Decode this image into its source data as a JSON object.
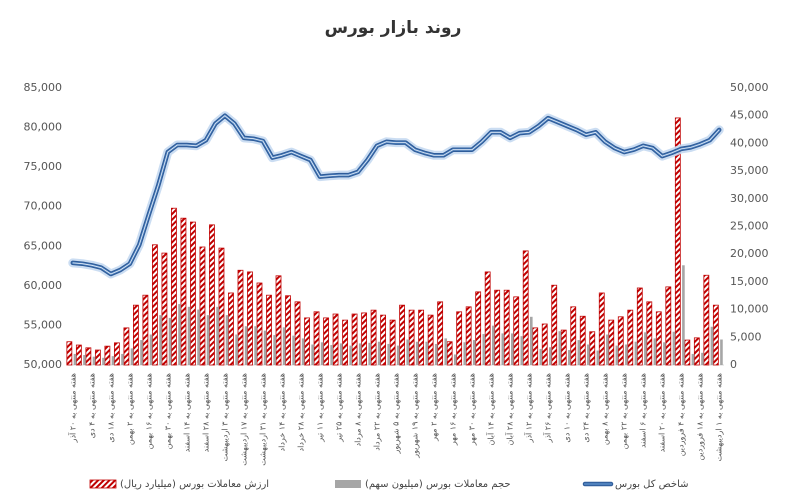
{
  "chart_data": {
    "type": "bar-line",
    "title": "روند بازار بورس",
    "categories": [
      "هفته منتهی به ۲۰ آذر",
      null,
      "هفته منتهی به ۴ دی",
      null,
      "هفته منتهی به ۱۸ دی",
      null,
      "هفته منتهی به ۲ بهمن",
      null,
      "هفته منتهی به ۱۶ بهمن",
      null,
      "هفته منتهی به ۳۰ بهمن",
      null,
      "هفته منتهی به ۱۴ اسفند",
      null,
      "هفته منتهی به ۲۸ اسفند",
      null,
      "هفته منتهی به ۳ اردیبهشت",
      null,
      "هفته منتهی به ۱۷ اردیبهشت",
      null,
      "هفته منتهی به ۳۱ اردیبهشت",
      null,
      "هفته منتهی به ۱۴ خرداد",
      null,
      "هفته منتهی به ۲۸ خرداد",
      null,
      "هفته منتهی به ۱۱ تیر",
      null,
      "هفته منتهی به ۲۵ تیر",
      null,
      "هفته منتهی به ۸ مرداد",
      null,
      "هفته منتهی به ۲۲ مرداد",
      null,
      "هفته منتهی به ۵ شهریور",
      null,
      "هفته منتهی به ۱۹ شهریور",
      null,
      "هفته منتهی به ۲ مهر",
      null,
      "هفته منتهی به ۱۶ مهر",
      null,
      "هفته منتهی به ۳۰ مهر",
      null,
      "هفته منتهی به ۱۴ آبان",
      null,
      "هفته منتهی به ۲۸ آبان",
      null,
      "هفته منتهی به ۱۲ آذر",
      null,
      "هفته منتهی به ۲۶ آذر",
      null,
      "هفته منتهی به ۱۰ دی",
      null,
      "هفته منتهی به ۲۴ دی",
      null,
      "هفته منتهی به ۸ بهمن",
      null,
      "هفته منتهی به ۲۲ بهمن",
      null,
      "هفته منتهی به ۶ اسفند",
      null,
      "هفته منتهی به ۲۰ اسفند",
      null,
      "هفته منتهی به ۴ فروردین",
      null,
      "هفته منتهی به ۱۸ فروردین",
      null,
      "هفته منتهی به ۱ اردیبهشت"
    ],
    "series": [
      {
        "name": "ارزش معاملات بورس (میلیارد ریال)",
        "type": "bar",
        "axis": "y2",
        "color": "#c00000",
        "pattern": "hatch",
        "values": [
          4200,
          3600,
          3100,
          2700,
          3400,
          4000,
          6700,
          10800,
          12600,
          21700,
          20200,
          28300,
          26500,
          25800,
          21300,
          25300,
          21100,
          13000,
          17100,
          16800,
          14800,
          12600,
          16100,
          12500,
          11400,
          8500,
          9600,
          8500,
          9200,
          8100,
          9200,
          9400,
          9900,
          9000,
          8100,
          10800,
          9900,
          9900,
          9000,
          11400,
          4200,
          9600,
          10500,
          13200,
          16800,
          13500,
          13500,
          12300,
          20600,
          6700,
          7400,
          14400,
          6300,
          10500,
          8800,
          6000,
          13000,
          8100,
          8700,
          9900,
          13900,
          11400,
          9600,
          14100,
          44600,
          4500,
          4900,
          16200,
          10800
        ]
      },
      {
        "name": "حجم معاملات بورس (میلیون سهم)",
        "type": "bar",
        "axis": "y2",
        "color": "#a6a6a6",
        "values": [
          2000,
          1800,
          1500,
          1300,
          1600,
          2000,
          3000,
          4500,
          5500,
          9000,
          8500,
          11000,
          10500,
          10000,
          9000,
          10500,
          9000,
          5500,
          7000,
          7000,
          6200,
          5400,
          6800,
          5300,
          4800,
          3700,
          4100,
          3600,
          3900,
          3500,
          3900,
          4000,
          4200,
          3800,
          3500,
          4600,
          4200,
          4200,
          3800,
          4800,
          1900,
          4100,
          4500,
          5600,
          7100,
          5700,
          5700,
          5200,
          8700,
          2900,
          3200,
          6100,
          2700,
          4500,
          3700,
          2600,
          5500,
          3500,
          3700,
          4200,
          5900,
          4800,
          4100,
          6000,
          18000,
          2000,
          2200,
          6900,
          4600
        ]
      },
      {
        "name": "شاخص کل بورس",
        "type": "line",
        "axis": "y",
        "color": "#4f81bd",
        "values": [
          62900,
          62800,
          62600,
          62300,
          61500,
          62000,
          62800,
          65200,
          69000,
          72700,
          76900,
          77800,
          77800,
          77700,
          78400,
          80500,
          81500,
          80500,
          78700,
          78600,
          78300,
          76200,
          76500,
          76900,
          76400,
          75900,
          73800,
          73900,
          74000,
          74000,
          74400,
          75900,
          77700,
          78200,
          78100,
          78100,
          77200,
          76800,
          76500,
          76500,
          77200,
          77200,
          77200,
          78200,
          79400,
          79400,
          78700,
          79300,
          79400,
          80200,
          81200,
          80700,
          80200,
          79700,
          79100,
          79400,
          78200,
          77400,
          76900,
          77200,
          77700,
          77400,
          76400,
          76800,
          77300,
          77500,
          77900,
          78400,
          79700
        ]
      }
    ],
    "ylim": [
      50000,
      85000
    ],
    "yticks": [
      {
        "value": 50000,
        "label": "50,000"
      },
      {
        "value": 55000,
        "label": "55,000"
      },
      {
        "value": 60000,
        "label": "60,000"
      },
      {
        "value": 65000,
        "label": "65,000"
      },
      {
        "value": 70000,
        "label": "70,000"
      },
      {
        "value": 75000,
        "label": "75,000"
      },
      {
        "value": 80000,
        "label": "80,000"
      },
      {
        "value": 85000,
        "label": "85,000"
      }
    ],
    "y2lim": [
      0,
      50000
    ],
    "y2ticks": [
      0,
      {
        "value": 5000,
        "label": "5,000"
      },
      {
        "value": 10000,
        "label": "10,000"
      },
      {
        "value": 15000,
        "label": "15,000"
      },
      {
        "value": 20000,
        "label": "20,000"
      },
      {
        "value": 25000,
        "label": "25,000"
      },
      {
        "value": 30000,
        "label": "30,000"
      },
      {
        "value": 35000,
        "label": "35,000"
      },
      {
        "value": 40000,
        "label": "40,000"
      },
      {
        "value": 45000,
        "label": "45,000"
      },
      {
        "value": 50000,
        "label": "50,000"
      }
    ],
    "grid": false,
    "legend": "bottom"
  }
}
